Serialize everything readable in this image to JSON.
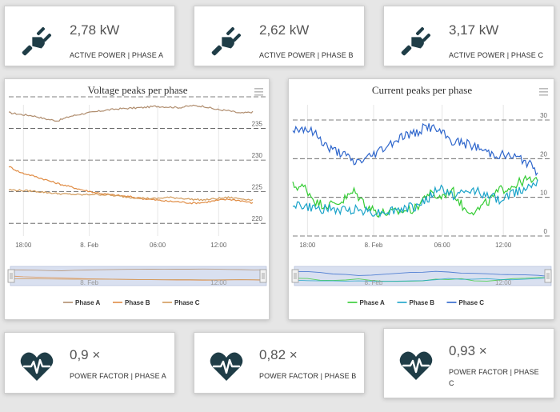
{
  "kpis": [
    {
      "value": "2,78 kW",
      "label": "ACTIVE POWER | PHASE A",
      "icon": "plug-icon"
    },
    {
      "value": "2,62 kW",
      "label": "ACTIVE POWER | PHASE B",
      "icon": "plug-icon"
    },
    {
      "value": "3,17 kW",
      "label": "ACTIVE POWER | PHASE C",
      "icon": "plug-icon"
    }
  ],
  "power_factors": [
    {
      "value": "0,9 ×",
      "label": "POWER FACTOR | PHASE A",
      "icon": "heart-pulse-icon"
    },
    {
      "value": "0,82 ×",
      "label": "POWER FACTOR | PHASE B",
      "icon": "heart-pulse-icon"
    },
    {
      "value": "0,93 ×",
      "label": "POWER FACTOR | PHASE C",
      "icon": "heart-pulse-icon"
    }
  ],
  "colors": {
    "icon": "#1f3d47",
    "voltage_phase_a": "#b08d6e",
    "voltage_phase_b": "#e08c44",
    "voltage_phase_c": "#d29a5a",
    "current_phase_a": "#33cc33",
    "current_phase_b": "#1aa3c9",
    "current_phase_c": "#2e66cc",
    "navigator_mask": "#ccd6eb"
  },
  "chart_data": [
    {
      "type": "line",
      "title": "Voltage peaks per phase",
      "ylim": [
        218,
        240
      ],
      "yticks": [
        220,
        225,
        230,
        235
      ],
      "y_tick_labels": [
        "220",
        "225",
        "230",
        "235"
      ],
      "x_tick_labels": [
        "18:00",
        "8. Feb",
        "06:00",
        "12:00"
      ],
      "navigator_labels": [
        "8. Feb",
        "12:00"
      ],
      "x": [
        0,
        1,
        2,
        3,
        4,
        5,
        6,
        7,
        8,
        9,
        10,
        11,
        12,
        13,
        14,
        15,
        16,
        17,
        18,
        19,
        20
      ],
      "series": [
        {
          "name": "Phase A",
          "values": [
            237.5,
            237.2,
            237.0,
            236.5,
            236.2,
            236.9,
            237.3,
            237.6,
            237.9,
            238.1,
            238.2,
            238.3,
            238.5,
            238.4,
            238.3,
            238.6,
            238.5,
            238.0,
            237.8,
            237.4,
            237.6
          ]
        },
        {
          "name": "Phase B",
          "values": [
            229.0,
            228.0,
            227.5,
            226.9,
            226.3,
            225.8,
            225.3,
            224.9,
            224.6,
            224.4,
            224.2,
            223.9,
            223.7,
            223.5,
            223.4,
            223.2,
            223.3,
            223.6,
            223.8,
            223.6,
            223.2
          ]
        },
        {
          "name": "Phase C",
          "values": [
            225.3,
            225.2,
            225.1,
            224.9,
            224.7,
            224.6,
            224.5,
            224.6,
            224.5,
            224.3,
            224.1,
            224.0,
            223.9,
            224.1,
            224.0,
            223.8,
            223.7,
            223.9,
            224.1,
            223.9,
            223.7
          ]
        }
      ],
      "legend": [
        "Phase A",
        "Phase B",
        "Phase C"
      ]
    },
    {
      "type": "line",
      "title": "Current peaks per phase",
      "ylim": [
        0,
        36
      ],
      "yticks": [
        0,
        10,
        20,
        30
      ],
      "y_tick_labels": [
        "0",
        "10",
        "20",
        "30"
      ],
      "x_tick_labels": [
        "18:00",
        "8. Feb",
        "06:00",
        "12:00"
      ],
      "navigator_labels": [
        "8. Feb",
        "12:00"
      ],
      "x": [
        0,
        1,
        2,
        3,
        4,
        5,
        6,
        7,
        8,
        9,
        10,
        11,
        12,
        13,
        14,
        15,
        16,
        17,
        18,
        19,
        20
      ],
      "series": [
        {
          "name": "Phase A",
          "values": [
            13.0,
            12.5,
            8.5,
            8.0,
            9.0,
            11.5,
            8.0,
            6.0,
            6.0,
            6.5,
            7.0,
            11.0,
            10.0,
            12.0,
            7.0,
            6.5,
            9.0,
            12.0,
            13.0,
            14.5,
            14.0
          ]
        },
        {
          "name": "Phase B",
          "values": [
            8.5,
            7.5,
            7.0,
            7.0,
            6.5,
            7.0,
            6.5,
            6.0,
            6.5,
            7.0,
            7.5,
            9.5,
            12.5,
            10.5,
            11.0,
            12.0,
            10.0,
            9.5,
            11.0,
            12.5,
            14.5
          ]
        },
        {
          "name": "Phase C",
          "values": [
            27.5,
            28.0,
            26.0,
            22.5,
            21.5,
            19.0,
            20.0,
            22.0,
            24.0,
            26.0,
            26.5,
            28.5,
            27.0,
            24.5,
            24.0,
            23.0,
            21.5,
            21.0,
            20.5,
            19.5,
            16.5
          ]
        }
      ],
      "legend": [
        "Phase A",
        "Phase B",
        "Phase C"
      ]
    }
  ]
}
